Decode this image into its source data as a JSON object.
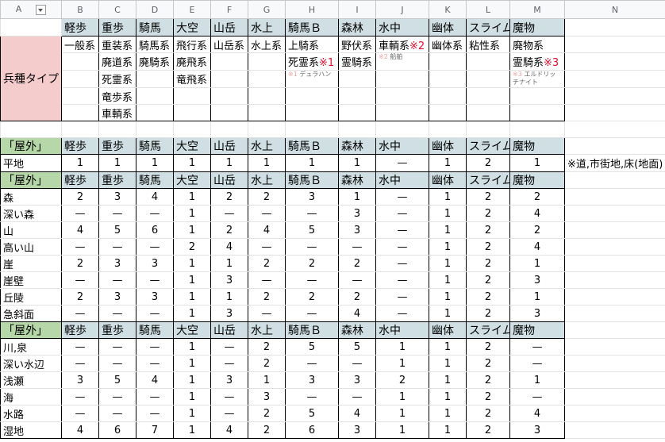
{
  "column_letters": [
    "A",
    "B",
    "C",
    "D",
    "E",
    "F",
    "G",
    "H",
    "I",
    "J",
    "K",
    "L",
    "M",
    "N"
  ],
  "unit_headers": [
    "軽歩",
    "重歩",
    "騎馬",
    "大空",
    "山岳",
    "水上",
    "騎馬Ｂ",
    "森林",
    "水中",
    "幽体",
    "スライム",
    "魔物"
  ],
  "type_label": "兵種タイプ",
  "unit_types": [
    [
      {
        "t": "一般系"
      }
    ],
    [
      {
        "t": "重装系"
      },
      {
        "t": "廃道系"
      },
      {
        "t": "死霊系"
      },
      {
        "t": "竜歩系"
      },
      {
        "t": "車輌系"
      }
    ],
    [
      {
        "t": "騎馬系"
      },
      {
        "t": "廃騎系"
      }
    ],
    [
      {
        "t": "飛行系"
      },
      {
        "t": "廃飛系"
      },
      {
        "t": "竜飛系"
      }
    ],
    [
      {
        "t": "山岳系"
      }
    ],
    [
      {
        "t": "水上系"
      }
    ],
    [
      {
        "t": "上騎系"
      },
      {
        "t": "死霊系",
        "m": "※1"
      },
      {
        "nm": "※1",
        "n": "デュラハン"
      }
    ],
    [
      {
        "t": "野伏系"
      },
      {
        "t": "霊騎系"
      }
    ],
    [
      {
        "t": "車輌系",
        "m": "※2"
      },
      {
        "nm": "※2",
        "n": "船舶"
      }
    ],
    [
      {
        "t": "幽体系"
      }
    ],
    [
      {
        "t": "粘性系"
      }
    ],
    [
      {
        "t": "廃物系"
      },
      {
        "t": "霊騎系",
        "m": "※3"
      },
      {
        "nm": "※3",
        "n": "エルドリッチナイト"
      }
    ]
  ],
  "blocks": [
    {
      "label": "「屋外」",
      "rows": [
        {
          "name": "平地",
          "values": [
            "1",
            "1",
            "1",
            "1",
            "1",
            "1",
            "1",
            "1",
            "—",
            "1",
            "2",
            "1"
          ],
          "side_note": "※道,市街地,床(地面)"
        }
      ]
    },
    {
      "label": "「屋外」",
      "rows": [
        {
          "name": "森",
          "values": [
            "2",
            "3",
            "4",
            "1",
            "2",
            "2",
            "3",
            "1",
            "—",
            "1",
            "2",
            "2"
          ]
        },
        {
          "name": "深い森",
          "values": [
            "—",
            "—",
            "—",
            "1",
            "—",
            "—",
            "—",
            "3",
            "—",
            "1",
            "2",
            "4"
          ]
        },
        {
          "name": "山",
          "values": [
            "4",
            "5",
            "6",
            "1",
            "2",
            "4",
            "5",
            "3",
            "—",
            "1",
            "2",
            "2"
          ]
        },
        {
          "name": "高い山",
          "values": [
            "—",
            "—",
            "—",
            "2",
            "4",
            "—",
            "—",
            "—",
            "—",
            "1",
            "2",
            "4"
          ]
        },
        {
          "name": "崖",
          "values": [
            "2",
            "3",
            "3",
            "1",
            "1",
            "2",
            "2",
            "2",
            "—",
            "1",
            "2",
            "1"
          ]
        },
        {
          "name": "崖壁",
          "values": [
            "—",
            "—",
            "—",
            "1",
            "3",
            "—",
            "—",
            "—",
            "—",
            "1",
            "2",
            "3"
          ]
        },
        {
          "name": "丘陵",
          "values": [
            "2",
            "3",
            "3",
            "1",
            "1",
            "2",
            "2",
            "2",
            "—",
            "1",
            "2",
            "1"
          ]
        },
        {
          "name": "急斜面",
          "values": [
            "—",
            "—",
            "—",
            "1",
            "3",
            "—",
            "—",
            "4",
            "—",
            "1",
            "2",
            "3"
          ]
        }
      ]
    },
    {
      "label": "「屋外」",
      "rows": [
        {
          "name": "川,泉",
          "values": [
            "—",
            "—",
            "—",
            "1",
            "—",
            "2",
            "5",
            "5",
            "1",
            "1",
            "2",
            "—"
          ]
        },
        {
          "name": "深い水辺",
          "values": [
            "—",
            "—",
            "—",
            "1",
            "—",
            "2",
            "—",
            "—",
            "1",
            "1",
            "2",
            "—"
          ]
        },
        {
          "name": "浅瀬",
          "values": [
            "3",
            "5",
            "4",
            "1",
            "3",
            "1",
            "3",
            "3",
            "2",
            "1",
            "2",
            "1"
          ]
        },
        {
          "name": "海",
          "values": [
            "—",
            "—",
            "—",
            "1",
            "—",
            "3",
            "—",
            "—",
            "1",
            "1",
            "2",
            "—"
          ]
        },
        {
          "name": "水路",
          "values": [
            "—",
            "—",
            "—",
            "1",
            "—",
            "2",
            "5",
            "4",
            "1",
            "1",
            "2",
            "4"
          ]
        },
        {
          "name": "湿地",
          "values": [
            "4",
            "6",
            "7",
            "1",
            "4",
            "2",
            "6",
            "3",
            "1",
            "1",
            "2",
            "3"
          ]
        }
      ]
    }
  ],
  "colors": {
    "unit_header_bg": "#d0dfe3",
    "outdoor_label_bg": "#b6d7a8",
    "type_label_bg": "#f4cccc",
    "note_mark": "#e0102f"
  }
}
